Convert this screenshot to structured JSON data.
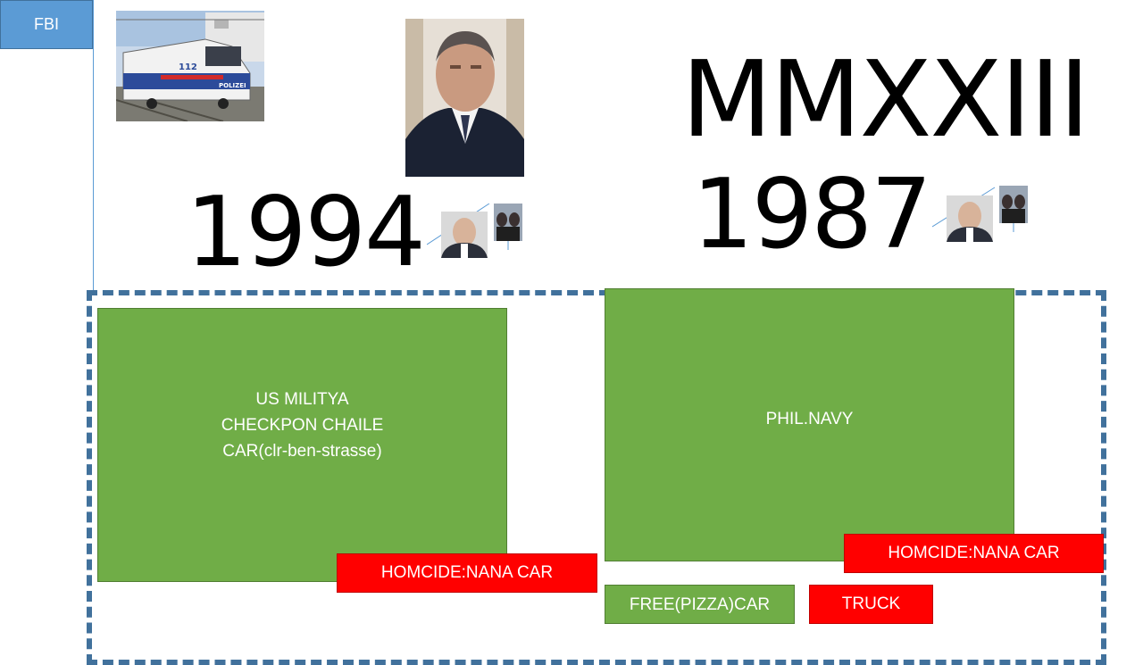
{
  "tab": {
    "label": "FBI"
  },
  "big_text": {
    "year_left": "1994",
    "year_right": "1987",
    "roman": "MMXXIII"
  },
  "boxes": {
    "left_lines": [
      "US MILITYA",
      "CHECKPON CHAILE",
      "CAR(clr-ben-strasse)"
    ],
    "right_label": "PHIL.NAVY"
  },
  "labels": {
    "homicide_left": "HOMCIDE:NANA CAR",
    "homicide_right": "HOMCIDE:NANA CAR",
    "pizza": "FREE(PIZZA)CAR",
    "truck": "TRUCK"
  },
  "train_photo": {
    "sign": "POLIZEI",
    "number": "112"
  },
  "colors": {
    "tab_blue": "#5b9bd5",
    "frame_blue": "#41719c",
    "box_green": "#70ad47",
    "label_red": "#ff0000"
  }
}
